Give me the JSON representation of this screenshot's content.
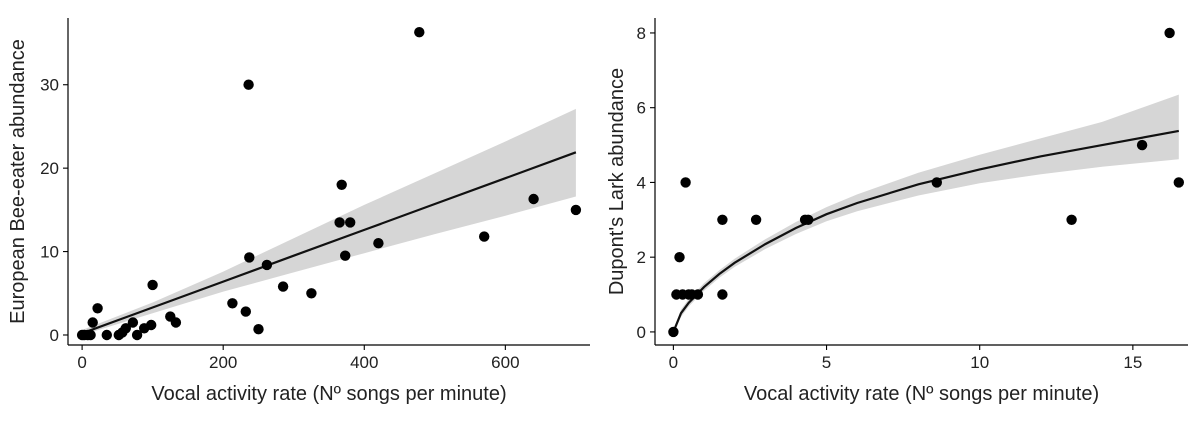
{
  "chart_data": [
    {
      "type": "scatter",
      "xlabel": "Vocal activity rate (Nº songs per minute)",
      "ylabel": "European Bee-eater abundance",
      "xlim": [
        -20,
        720
      ],
      "ylim": [
        -1.2,
        38
      ],
      "xticks": [
        0,
        200,
        400,
        600
      ],
      "yticks": [
        0,
        10,
        20,
        30
      ],
      "grid": false,
      "points": [
        [
          0,
          0
        ],
        [
          3,
          0
        ],
        [
          8,
          0
        ],
        [
          12,
          0
        ],
        [
          15,
          1.5
        ],
        [
          22,
          3.2
        ],
        [
          35,
          0
        ],
        [
          52,
          0
        ],
        [
          57,
          0.3
        ],
        [
          62,
          0.8
        ],
        [
          72,
          1.5
        ],
        [
          78,
          0
        ],
        [
          88,
          0.8
        ],
        [
          98,
          1.2
        ],
        [
          100,
          6
        ],
        [
          125,
          2.2
        ],
        [
          133,
          1.5
        ],
        [
          213,
          3.8
        ],
        [
          232,
          2.8
        ],
        [
          236,
          30
        ],
        [
          237,
          9.3
        ],
        [
          250,
          0.7
        ],
        [
          262,
          8.4
        ],
        [
          285,
          5.8
        ],
        [
          325,
          5
        ],
        [
          365,
          13.5
        ],
        [
          368,
          18
        ],
        [
          373,
          9.5
        ],
        [
          380,
          13.5
        ],
        [
          420,
          11
        ],
        [
          478,
          36.3
        ],
        [
          570,
          11.8
        ],
        [
          640,
          16.3
        ],
        [
          700,
          15
        ]
      ],
      "fit": {
        "x": [
          0,
          100,
          200,
          300,
          400,
          500,
          600,
          700
        ],
        "y": [
          0.2,
          3.3,
          6.4,
          9.5,
          12.6,
          15.7,
          18.8,
          21.9
        ],
        "ci_lower": [
          0,
          2.6,
          5.2,
          7.5,
          9.8,
          12.1,
          14.3,
          16.6
        ],
        "ci_upper": [
          0.6,
          3.9,
          7.6,
          11.6,
          15.6,
          19.4,
          23.2,
          27.1
        ]
      }
    },
    {
      "type": "scatter",
      "xlabel": "Vocal activity rate (Nº songs per minute)",
      "ylabel": "Dupont's Lark abundance",
      "xlim": [
        -0.6,
        16.8
      ],
      "ylim": [
        -0.35,
        8.4
      ],
      "xticks": [
        0,
        5,
        10,
        15
      ],
      "yticks": [
        0,
        2,
        4,
        6,
        8
      ],
      "grid": false,
      "points": [
        [
          0,
          0
        ],
        [
          0.1,
          1
        ],
        [
          0.2,
          2
        ],
        [
          0.3,
          1
        ],
        [
          0.4,
          4
        ],
        [
          0.5,
          1
        ],
        [
          0.6,
          1
        ],
        [
          0.8,
          1
        ],
        [
          1.6,
          3
        ],
        [
          1.6,
          1
        ],
        [
          2.7,
          3
        ],
        [
          4.3,
          3
        ],
        [
          4.4,
          3
        ],
        [
          8.6,
          4
        ],
        [
          13,
          3
        ],
        [
          15.3,
          5
        ],
        [
          16.2,
          8
        ],
        [
          16.5,
          4
        ]
      ],
      "fit": {
        "x": [
          0,
          0.25,
          0.5,
          1,
          1.5,
          2,
          3,
          4,
          5,
          6,
          8,
          10,
          12,
          14,
          16.5
        ],
        "y": [
          0,
          0.5,
          0.78,
          1.2,
          1.55,
          1.85,
          2.35,
          2.78,
          3.15,
          3.45,
          3.95,
          4.35,
          4.7,
          5.0,
          5.38
        ],
        "ci_lower": [
          0,
          0.4,
          0.68,
          1.1,
          1.45,
          1.74,
          2.22,
          2.62,
          2.96,
          3.23,
          3.65,
          3.98,
          4.22,
          4.42,
          4.62
        ],
        "ci_upper": [
          0,
          0.6,
          0.88,
          1.3,
          1.65,
          1.96,
          2.48,
          2.94,
          3.34,
          3.68,
          4.26,
          4.74,
          5.18,
          5.62,
          6.35
        ]
      }
    }
  ]
}
